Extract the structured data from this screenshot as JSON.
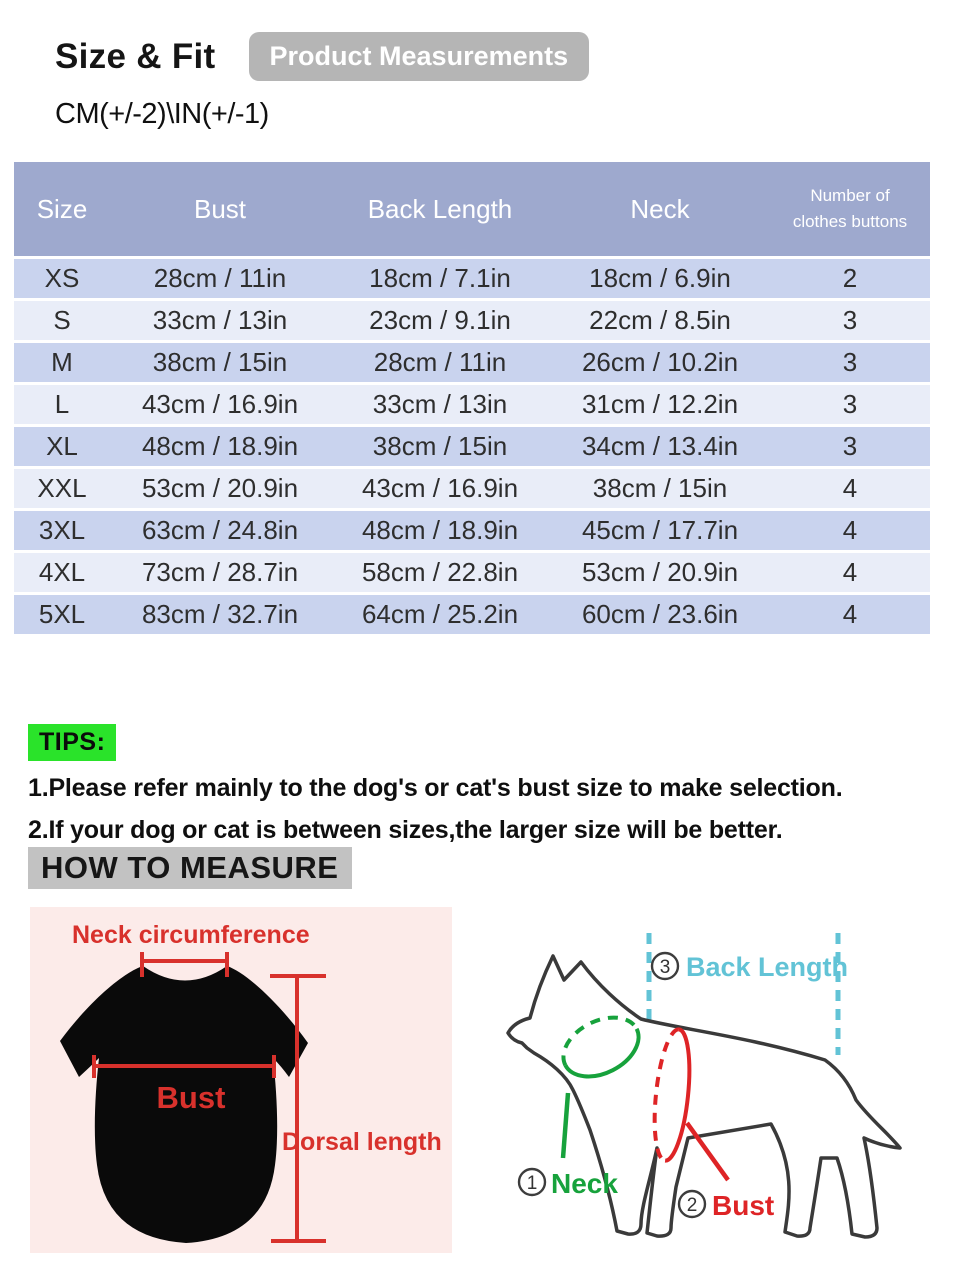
{
  "header": {
    "title": "Size & Fit",
    "badge": "Product Measurements",
    "tolerance": "CM(+/-2)\\IN(+/-1)"
  },
  "table": {
    "columns": [
      "Size",
      "Bust",
      "Back Length",
      "Neck",
      "Number of clothes buttons"
    ],
    "rows": [
      {
        "size": "XS",
        "bust": "28cm / 11in",
        "back_length": "18cm / 7.1in",
        "neck": "18cm / 6.9in",
        "buttons": "2"
      },
      {
        "size": "S",
        "bust": "33cm / 13in",
        "back_length": "23cm / 9.1in",
        "neck": "22cm / 8.5in",
        "buttons": "3"
      },
      {
        "size": "M",
        "bust": "38cm / 15in",
        "back_length": "28cm / 11in",
        "neck": "26cm / 10.2in",
        "buttons": "3"
      },
      {
        "size": "L",
        "bust": "43cm / 16.9in",
        "back_length": "33cm / 13in",
        "neck": "31cm / 12.2in",
        "buttons": "3"
      },
      {
        "size": "XL",
        "bust": "48cm / 18.9in",
        "back_length": "38cm / 15in",
        "neck": "34cm / 13.4in",
        "buttons": "3"
      },
      {
        "size": "XXL",
        "bust": "53cm / 20.9in",
        "back_length": "43cm / 16.9in",
        "neck": "38cm / 15in",
        "buttons": "4"
      },
      {
        "size": "3XL",
        "bust": "63cm / 24.8in",
        "back_length": "48cm / 18.9in",
        "neck": "45cm / 17.7in",
        "buttons": "4"
      },
      {
        "size": "4XL",
        "bust": "73cm / 28.7in",
        "back_length": "58cm / 22.8in",
        "neck": "53cm / 20.9in",
        "buttons": "4"
      },
      {
        "size": "5XL",
        "bust": "83cm / 32.7in",
        "back_length": "64cm / 25.2in",
        "neck": "60cm / 23.6in",
        "buttons": "4"
      }
    ]
  },
  "tips": {
    "label": "TIPS:",
    "line1": "1.Please refer mainly to the dog's or cat's bust size to make selection.",
    "line2": "2.If your dog or cat is between sizes,the larger size will be better."
  },
  "measure": {
    "heading": "HOW TO MEASURE",
    "shirt": {
      "neck_label": "Neck circumference",
      "bust_label": "Bust",
      "dorsal_label": "Dorsal length"
    },
    "dog": {
      "back_num": "3",
      "back_label": "Back Length",
      "neck_num": "1",
      "neck_label": "Neck",
      "bust_num": "2",
      "bust_label": "Bust"
    }
  },
  "colors": {
    "table_header": "#9ea9ce",
    "row_odd": "#c9d3ee",
    "row_even": "#e9edf8",
    "tips_highlight": "#2ae32a",
    "measure_highlight": "#c2c2c2",
    "badge_gray": "#b5b5b5",
    "panel_pink": "#fcebe9",
    "measure_red": "#d8312c",
    "measure_green": "#17a23c",
    "measure_cyan": "#62c3d6"
  }
}
